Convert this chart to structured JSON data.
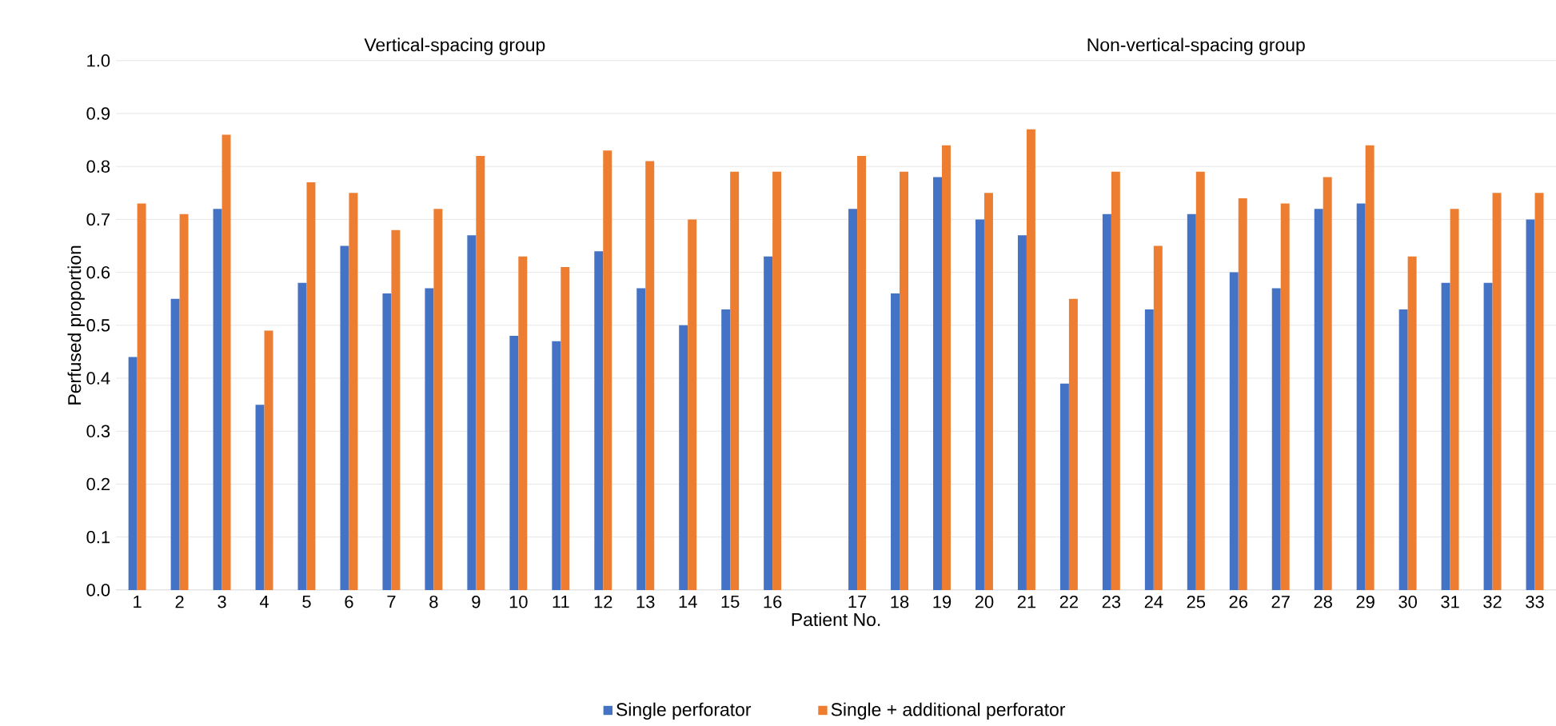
{
  "chart_data": {
    "type": "bar",
    "xlabel": "Patient No.",
    "ylabel": "Perfused proportion",
    "annotations": [
      "Vertical-spacing group",
      "Non-vertical-spacing group"
    ],
    "categories": [
      "1",
      "2",
      "3",
      "4",
      "5",
      "6",
      "7",
      "8",
      "9",
      "10",
      "11",
      "12",
      "13",
      "14",
      "15",
      "16",
      null,
      "17",
      "18",
      "19",
      "20",
      "21",
      "22",
      "23",
      "24",
      "25",
      "26",
      "27",
      "28",
      "29",
      "30",
      "31",
      "32",
      "33"
    ],
    "series": [
      {
        "name": "Single perforator",
        "color": "#4472c4",
        "values": [
          0.44,
          0.55,
          0.72,
          0.35,
          0.58,
          0.65,
          0.56,
          0.57,
          0.67,
          0.48,
          0.47,
          0.64,
          0.57,
          0.5,
          0.53,
          0.63,
          null,
          0.72,
          0.56,
          0.78,
          0.7,
          0.67,
          0.39,
          0.71,
          0.53,
          0.71,
          0.6,
          0.57,
          0.72,
          0.73,
          0.53,
          0.58,
          0.58,
          0.7
        ]
      },
      {
        "name": "Single + additional perforator",
        "color": "#ed7d31",
        "values": [
          0.73,
          0.71,
          0.86,
          0.49,
          0.77,
          0.75,
          0.68,
          0.72,
          0.82,
          0.63,
          0.61,
          0.83,
          0.81,
          0.7,
          0.79,
          0.79,
          null,
          0.82,
          0.79,
          0.84,
          0.75,
          0.87,
          0.55,
          0.79,
          0.65,
          0.79,
          0.74,
          0.73,
          0.78,
          0.84,
          0.63,
          0.72,
          0.75,
          0.75
        ]
      }
    ],
    "ylim": [
      0,
      1.0
    ],
    "yticks": [
      {
        "value": 0,
        "label": "0.0"
      },
      0.1,
      0.2,
      0.3,
      0.4,
      0.5,
      0.6,
      0.7,
      0.8,
      0.9,
      {
        "value": 1,
        "label": "1.0"
      }
    ],
    "grid": "y",
    "legend": "bottom"
  }
}
